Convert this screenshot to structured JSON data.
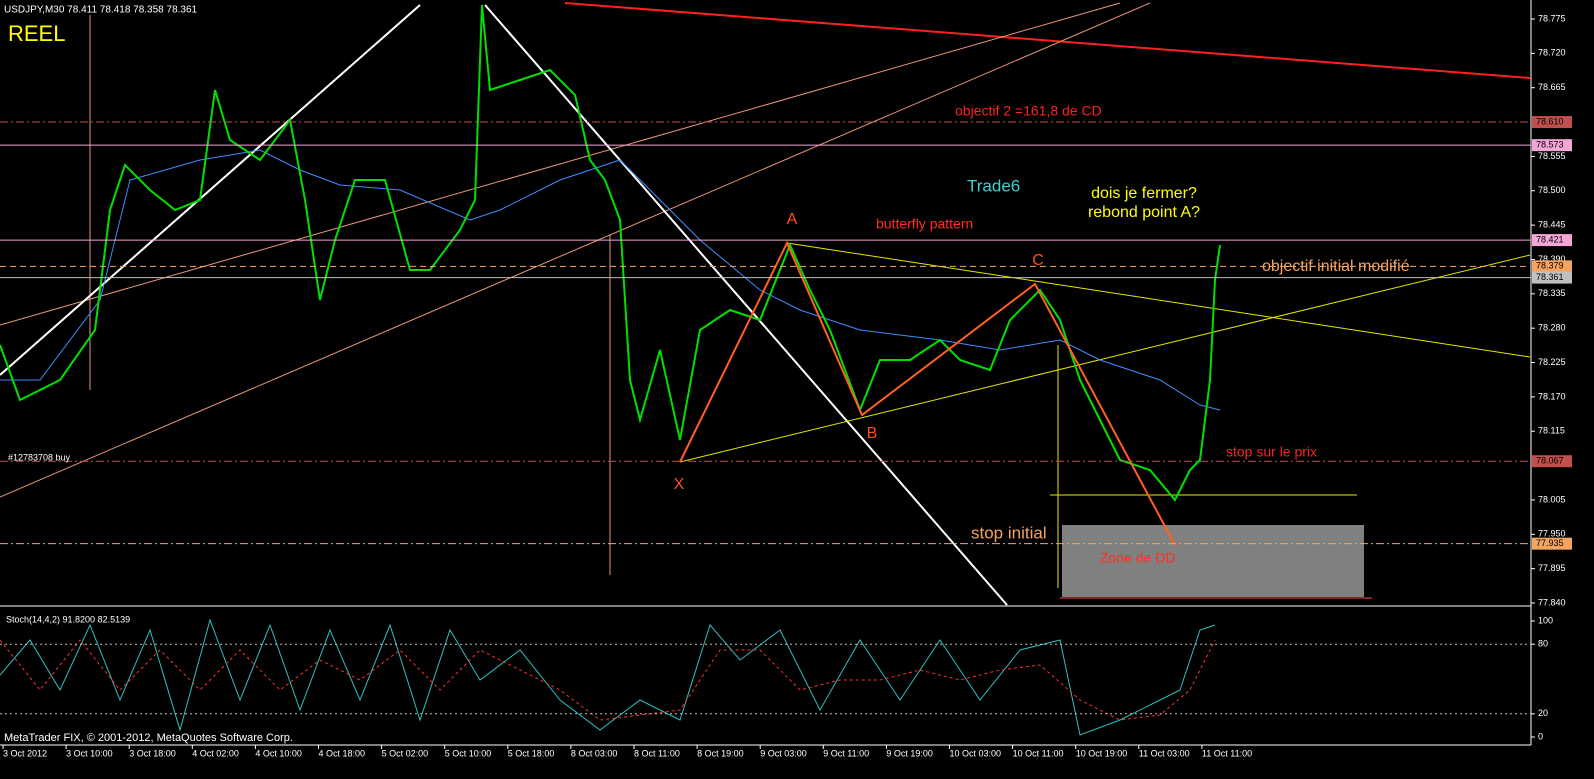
{
  "header": {
    "symbol": "USDJPY,M30  78.411 78.418 78.358 78.361",
    "account": "REEL",
    "order": "#12783708 buy"
  },
  "price_axis": {
    "ticks": [
      78.775,
      {
        "value": 78.72,
        "label": "78.720"
      },
      78.665,
      78.555,
      {
        "value": 78.5,
        "label": "78.500"
      },
      78.445,
      {
        "value": 78.39,
        "label": "78.390"
      },
      78.335,
      {
        "value": 78.28,
        "label": "78.280"
      },
      78.225,
      {
        "value": 78.17,
        "label": "78.170"
      },
      78.115,
      78.005,
      {
        "value": 77.95,
        "label": "77.950"
      },
      77.895,
      {
        "value": 77.84,
        "label": "77.840"
      }
    ],
    "levels": [
      {
        "value": 78.61,
        "label": "78.610",
        "color": "#c0504d",
        "line": "dashdot"
      },
      {
        "value": 78.573,
        "label": "78.573",
        "color": "#f4a6d7",
        "line": "solid"
      },
      {
        "value": 78.421,
        "label": "78.421",
        "color": "#f4a6d7",
        "line": "solid"
      },
      {
        "value": 78.379,
        "label": "78.379",
        "color": "#f4a460",
        "line": "dashed"
      },
      {
        "value": 78.361,
        "label": "78.361",
        "color": "#c0c0c0",
        "line": "solid"
      },
      {
        "value": 78.067,
        "label": "78.067",
        "color": "#c0504d",
        "line": "dashdot"
      },
      {
        "value": 77.935,
        "label": "77.935",
        "color": "#f4a460",
        "line": "dashdot"
      }
    ]
  },
  "stoch": {
    "title": "Stoch(14,4,2) 91.8200 82.5139",
    "ticks": [
      100,
      80,
      20,
      0
    ],
    "levels": [
      80,
      20
    ]
  },
  "time_axis": {
    "labels": [
      "3 Oct 2012",
      "3 Oct 10:00",
      "3 Oct 18:00",
      "4 Oct 02:00",
      "4 Oct 10:00",
      "4 Oct 18:00",
      "5 Oct 02:00",
      "5 Oct 10:00",
      "5 Oct 18:00",
      "8 Oct 03:00",
      "8 Oct 11:00",
      "8 Oct 19:00",
      "9 Oct 03:00",
      "9 Oct 11:00",
      "9 Oct 19:00",
      "10 Oct 03:00",
      "10 Oct 11:00",
      "10 Oct 19:00",
      "11 Oct 03:00",
      "11 Oct 11:00"
    ]
  },
  "annotations": {
    "objectif2": "objectif 2 =161,8 de CD",
    "trade": "Trade6",
    "pattern": "butterfly pattern",
    "question1": "dois je fermer?",
    "question2": "rebond point A?",
    "objectif_initial": "objectif initial modifié",
    "point_a": "A",
    "point_b": "B",
    "point_c": "C",
    "point_x": "X",
    "stop_prix": "stop sur le prix",
    "stop_initial": "stop initial",
    "zone": "Zone de DD"
  },
  "footer": "MetaTrader FIX, © 2001-2012, MetaQuotes Software Corp."
}
